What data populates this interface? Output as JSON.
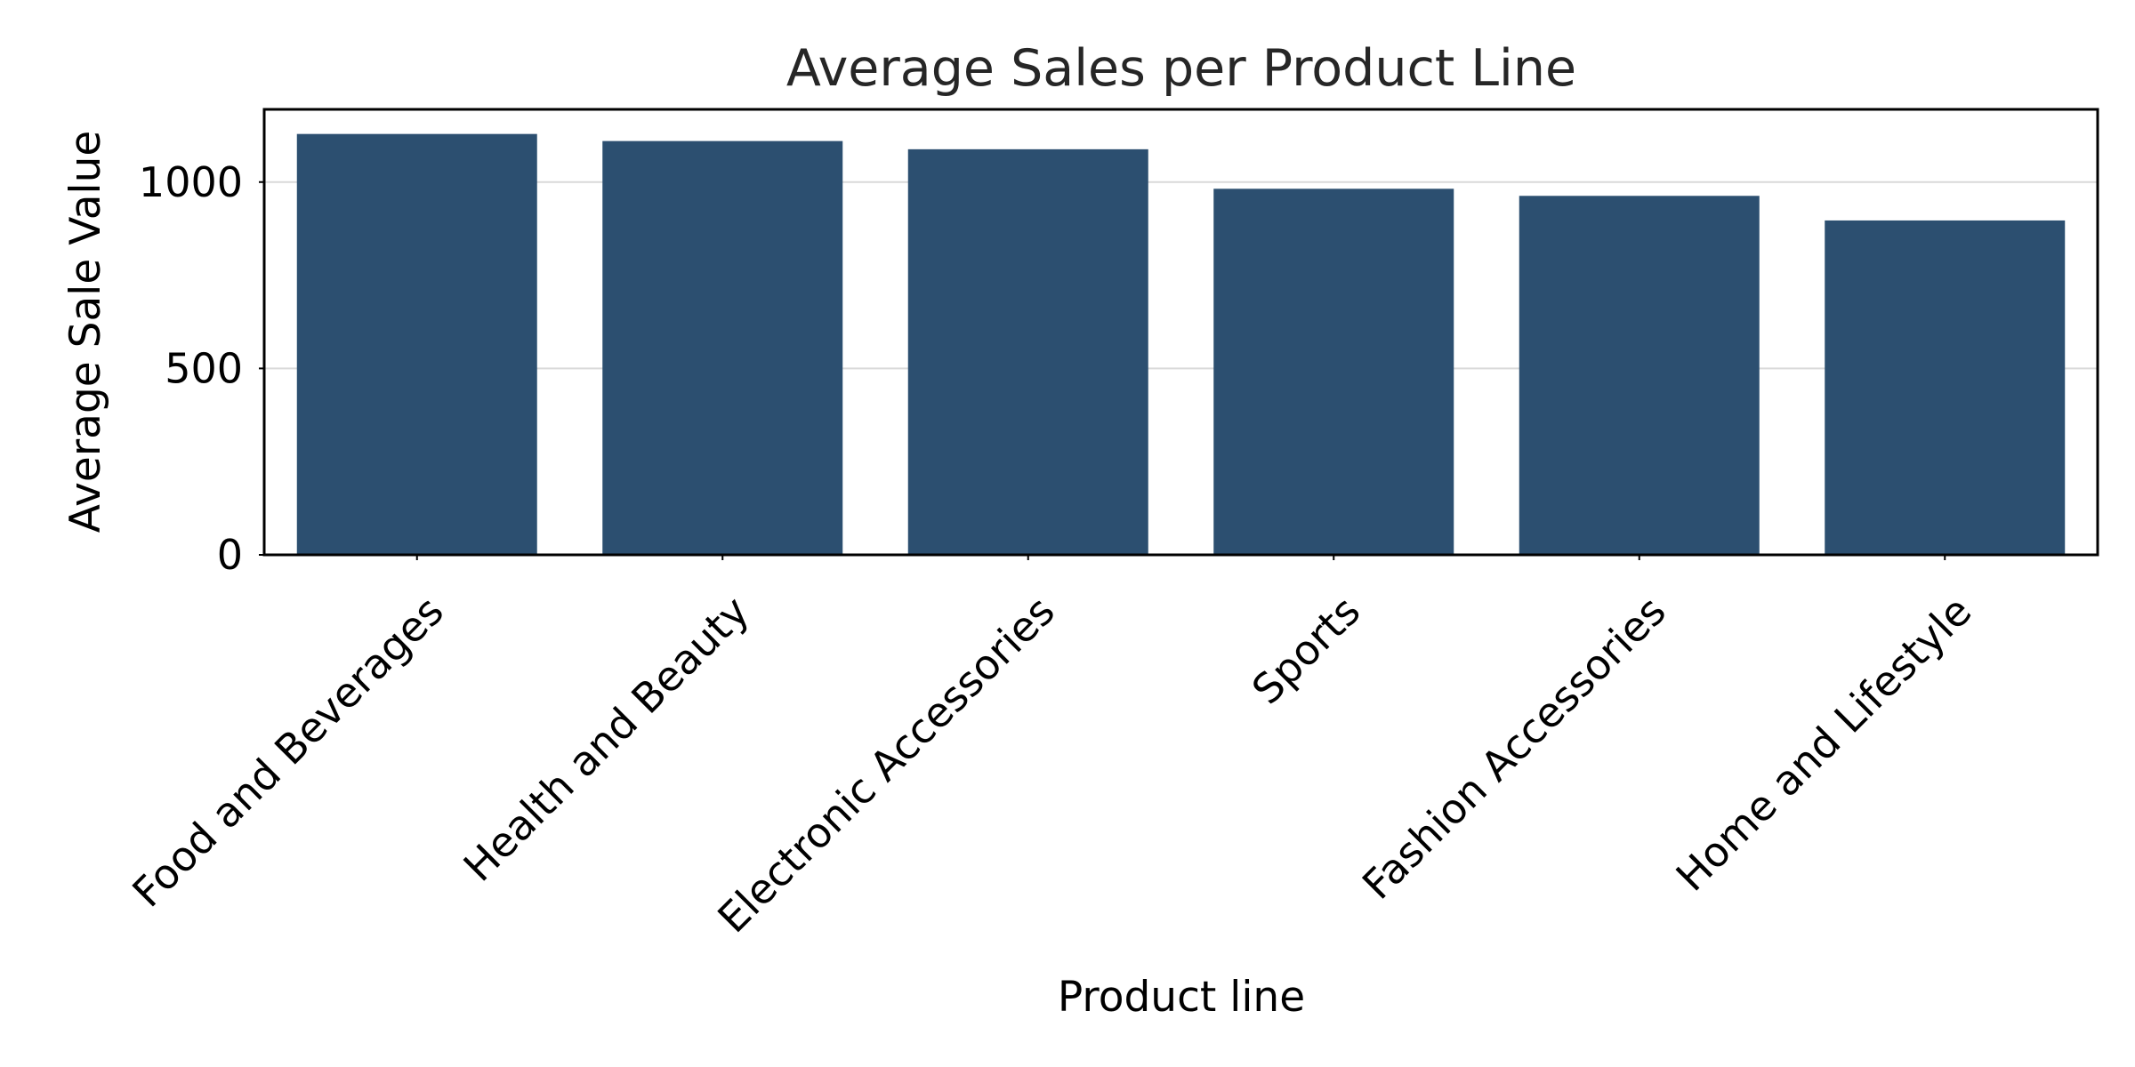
{
  "chart_data": {
    "type": "bar",
    "title": "Average Sales per Product Line",
    "xlabel": "Product line",
    "ylabel": "Average Sale Value",
    "categories": [
      "Food and Beverages",
      "Health and Beauty",
      "Electronic Accessories",
      "Sports",
      "Fashion Accessories",
      "Home and Lifestyle"
    ],
    "values": [
      1129,
      1110,
      1088,
      982,
      963,
      897
    ],
    "ylim": [
      0,
      1195
    ],
    "yticks": [
      0,
      500,
      1000
    ],
    "grid": "horizontal",
    "bar_color": "#2c4f70"
  }
}
